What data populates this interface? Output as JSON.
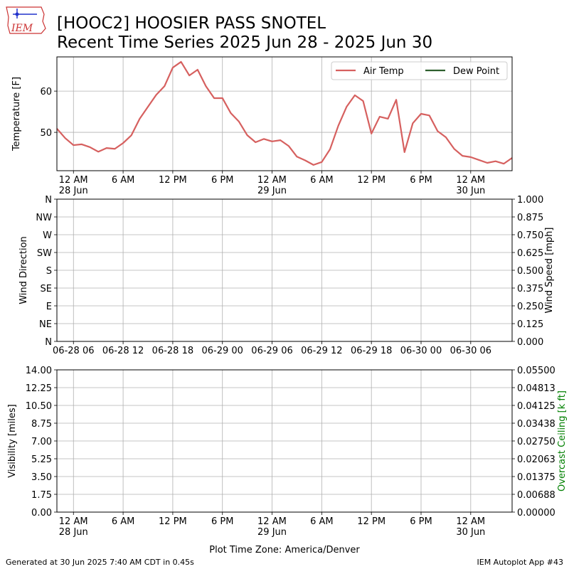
{
  "header": {
    "title": "[HOOC2] HOOSIER PASS SNOTEL",
    "subtitle": "Recent Time Series 2025 Jun 28 - 2025 Jun 30",
    "logo": "IEM"
  },
  "footer": {
    "left": "Generated at 30 Jun 2025 7:40 AM CDT in 0.45s",
    "right": "IEM Autoplot App #43"
  },
  "chart_data": [
    {
      "type": "line",
      "ylabel": "Temperature [F]",
      "grid": true,
      "legend": "upper right",
      "x": [
        "06-27 22:00",
        "06-27 23:00",
        "06-28 00:00",
        "06-28 01:00",
        "06-28 02:00",
        "06-28 03:00",
        "06-28 04:00",
        "06-28 05:00",
        "06-28 06:00",
        "06-28 07:00",
        "06-28 08:00",
        "06-28 09:00",
        "06-28 10:00",
        "06-28 11:00",
        "06-28 12:00",
        "06-28 13:00",
        "06-28 14:00",
        "06-28 15:00",
        "06-28 16:00",
        "06-28 17:00",
        "06-28 18:00",
        "06-28 19:00",
        "06-28 20:00",
        "06-28 21:00",
        "06-28 22:00",
        "06-28 23:00",
        "06-29 00:00",
        "06-29 01:00",
        "06-29 02:00",
        "06-29 03:00",
        "06-29 04:00",
        "06-29 05:00",
        "06-29 06:00",
        "06-29 07:00",
        "06-29 08:00",
        "06-29 09:00",
        "06-29 10:00",
        "06-29 11:00",
        "06-29 12:00",
        "06-29 13:00",
        "06-29 14:00",
        "06-29 15:00",
        "06-29 16:00",
        "06-29 17:00",
        "06-29 18:00",
        "06-29 19:00",
        "06-29 20:00",
        "06-29 21:00",
        "06-29 22:00",
        "06-29 23:00",
        "06-30 00:00",
        "06-30 01:00",
        "06-30 02:00",
        "06-30 03:00",
        "06-30 04:00",
        "06-30 05:00"
      ],
      "series": [
        {
          "name": "Air Temp",
          "color": "#d6605f",
          "values": [
            50.9,
            48.6,
            46.9,
            47.1,
            46.4,
            45.3,
            46.2,
            46.0,
            47.4,
            49.3,
            53.3,
            56.2,
            59.1,
            61.2,
            65.7,
            67.1,
            63.8,
            65.2,
            61.2,
            58.3,
            58.3,
            54.7,
            52.6,
            49.3,
            47.6,
            48.4,
            47.8,
            48.1,
            46.7,
            44.1,
            43.2,
            42.1,
            42.8,
            45.9,
            51.6,
            56.2,
            59.0,
            57.6,
            49.7,
            53.8,
            53.3,
            57.9,
            45.2,
            52.2,
            54.5,
            54.1,
            50.3,
            48.8,
            46.0,
            44.3,
            44.0,
            43.3,
            42.6,
            43.0,
            42.4,
            43.8
          ]
        },
        {
          "name": "Dew Point",
          "color": "#2e5f2e",
          "values": [
            null,
            null,
            null,
            null,
            null,
            null,
            null,
            null,
            null,
            null,
            null,
            null,
            null,
            null,
            null,
            null,
            null,
            null,
            null,
            null,
            null,
            null,
            null,
            null,
            null,
            null,
            null,
            null,
            null,
            null,
            null,
            null,
            null,
            null,
            null,
            null,
            null,
            null,
            null,
            null,
            null,
            null,
            null,
            null,
            null,
            null,
            null,
            null,
            null,
            null,
            null,
            null,
            null,
            null,
            null,
            null
          ]
        }
      ],
      "xlim": [
        "06-27 22:00",
        "06-30 05:00"
      ],
      "xticks": [
        {
          "value": "06-28 00:00",
          "label": "12 AM\n28 Jun"
        },
        {
          "value": "06-28 06:00",
          "label": "6 AM"
        },
        {
          "value": "06-28 12:00",
          "label": "12 PM"
        },
        {
          "value": "06-28 18:00",
          "label": "6 PM"
        },
        {
          "value": "06-29 00:00",
          "label": "12 AM\n29 Jun"
        },
        {
          "value": "06-29 06:00",
          "label": "6 AM"
        },
        {
          "value": "06-29 12:00",
          "label": "12 PM"
        },
        {
          "value": "06-29 18:00",
          "label": "6 PM"
        },
        {
          "value": "06-30 00:00",
          "label": "12 AM\n30 Jun"
        }
      ],
      "ylim": [
        40.7,
        68.3
      ],
      "yticks": [
        50,
        60
      ]
    },
    {
      "type": "line",
      "ylabel": "Wind Direction",
      "y2label": "Wind Speed [mph]",
      "grid": true,
      "xlim": [
        "06-27 22:00",
        "06-30 05:00"
      ],
      "xticks": [
        {
          "value": "06-28 00:00",
          "label": "06-28 06"
        },
        {
          "value": "06-28 06:00",
          "label": "06-28 12"
        },
        {
          "value": "06-28 12:00",
          "label": "06-28 18"
        },
        {
          "value": "06-28 18:00",
          "label": "06-29 00"
        },
        {
          "value": "06-29 00:00",
          "label": "06-29 06"
        },
        {
          "value": "06-29 06:00",
          "label": "06-29 12"
        },
        {
          "value": "06-29 12:00",
          "label": "06-29 18"
        },
        {
          "value": "06-29 18:00",
          "label": "06-30 00"
        },
        {
          "value": "06-30 00:00",
          "label": "06-30 06"
        }
      ],
      "ylim": [
        0,
        360
      ],
      "yticks": [
        {
          "value": 0,
          "label": "N"
        },
        {
          "value": 45,
          "label": "NE"
        },
        {
          "value": 90,
          "label": "E"
        },
        {
          "value": 135,
          "label": "SE"
        },
        {
          "value": 180,
          "label": "S"
        },
        {
          "value": 225,
          "label": "SW"
        },
        {
          "value": 270,
          "label": "W"
        },
        {
          "value": 315,
          "label": "NW"
        },
        {
          "value": 360,
          "label": "N"
        }
      ],
      "y2lim": [
        0,
        1
      ],
      "y2ticks": [
        {
          "value": 0,
          "label": "0.000"
        },
        0.125,
        {
          "value": 0.25,
          "label": "0.250"
        },
        0.375,
        {
          "value": 0.5,
          "label": "0.500"
        },
        0.625,
        {
          "value": 0.75,
          "label": "0.750"
        },
        0.875,
        {
          "value": 1,
          "label": "1.000"
        }
      ]
    },
    {
      "type": "line",
      "ylabel": "Visibility [miles]",
      "y2label": "Overcast Ceiling [k ft]",
      "y2label_color": "#008000",
      "xlabel": "Plot Time Zone: America/Denver",
      "grid": true,
      "xlim": [
        "06-27 22:00",
        "06-30 05:00"
      ],
      "xticks": [
        {
          "value": "06-28 00:00",
          "label": "12 AM\n28 Jun"
        },
        {
          "value": "06-28 06:00",
          "label": "6 AM"
        },
        {
          "value": "06-28 12:00",
          "label": "12 PM"
        },
        {
          "value": "06-28 18:00",
          "label": "6 PM"
        },
        {
          "value": "06-29 00:00",
          "label": "12 AM\n29 Jun"
        },
        {
          "value": "06-29 06:00",
          "label": "6 AM"
        },
        {
          "value": "06-29 12:00",
          "label": "12 PM"
        },
        {
          "value": "06-29 18:00",
          "label": "6 PM"
        },
        {
          "value": "06-30 00:00",
          "label": "12 AM\n30 Jun"
        }
      ],
      "ylim": [
        0,
        14
      ],
      "yticks": [
        {
          "value": 0,
          "label": "0.00"
        },
        1.75,
        {
          "value": 3.5,
          "label": "3.50"
        },
        5.25,
        {
          "value": 7,
          "label": "7.00"
        },
        8.75,
        {
          "value": 10.5,
          "label": "10.50"
        },
        12.25,
        {
          "value": 14,
          "label": "14.00"
        }
      ],
      "y2lim": [
        0,
        0.055
      ],
      "y2ticks": [
        {
          "value": 0,
          "label": "0.00000"
        },
        {
          "value": 0.006875,
          "label": "0.00688"
        },
        0.01375,
        {
          "value": 0.020625,
          "label": "0.02063"
        },
        {
          "value": 0.0275,
          "label": "0.02750"
        },
        {
          "value": 0.034375,
          "label": "0.03438"
        },
        0.04125,
        {
          "value": 0.048125,
          "label": "0.04813"
        },
        {
          "value": 0.055,
          "label": "0.05500"
        }
      ]
    }
  ]
}
